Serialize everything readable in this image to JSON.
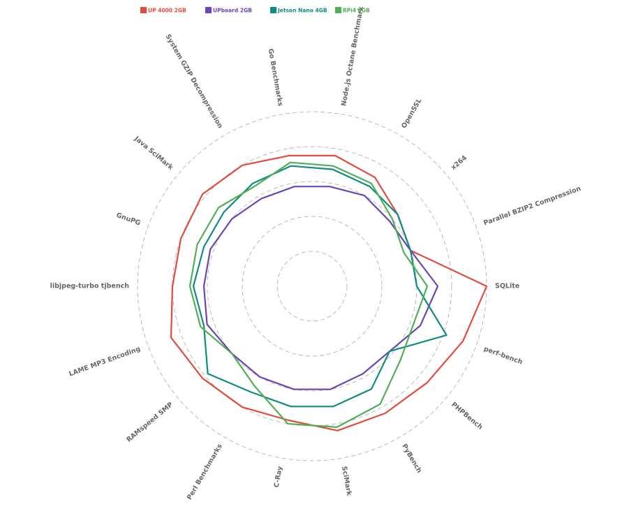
{
  "chart_data": {
    "type": "radar",
    "title": "",
    "categories": [
      "SQLite",
      "perf-bench",
      "PHPBench",
      "PyBench",
      "SciMark",
      "C-Ray",
      "Perl Benchmarks",
      "RAMspeed SMP",
      "LAME MP3 Encoding",
      "libjpeg-turbo tjbench",
      "GnuPG",
      "Java SciMark",
      "System GZIP Decompression",
      "Go Benchmarks",
      "Node.js Octane Benchmark",
      "OpenSSL",
      "x264",
      "Parallel BZIP2 Compression"
    ],
    "rmax": 250,
    "grid": true,
    "grid_rings": [
      50,
      100,
      150,
      200,
      250
    ],
    "legend_position": "top",
    "series": [
      {
        "name": "UP 4000 2GB",
        "color": "#e34b3e",
        "values": [
          250,
          230,
          215,
          210,
          210,
          195,
          200,
          205,
          215,
          200,
          200,
          205,
          200,
          190,
          190,
          180,
          160,
          150
        ]
      },
      {
        "name": "UPboard 2GB",
        "color": "#6a45b4",
        "values": [
          180,
          165,
          145,
          145,
          150,
          150,
          150,
          150,
          160,
          155,
          155,
          150,
          145,
          145,
          145,
          150,
          145,
          150
        ]
      },
      {
        "name": "Jetson Nano 4GB",
        "color": "#0f8c80",
        "values": [
          150,
          205,
          145,
          170,
          175,
          175,
          175,
          195,
          165,
          170,
          165,
          165,
          170,
          175,
          170,
          165,
          160,
          150
        ]
      },
      {
        "name": "RPi4 4GB",
        "color": "#52ae55",
        "values": [
          165,
          155,
          165,
          195,
          205,
          200,
          165,
          150,
          170,
          175,
          175,
          175,
          165,
          180,
          175,
          170,
          150,
          140
        ]
      }
    ]
  }
}
